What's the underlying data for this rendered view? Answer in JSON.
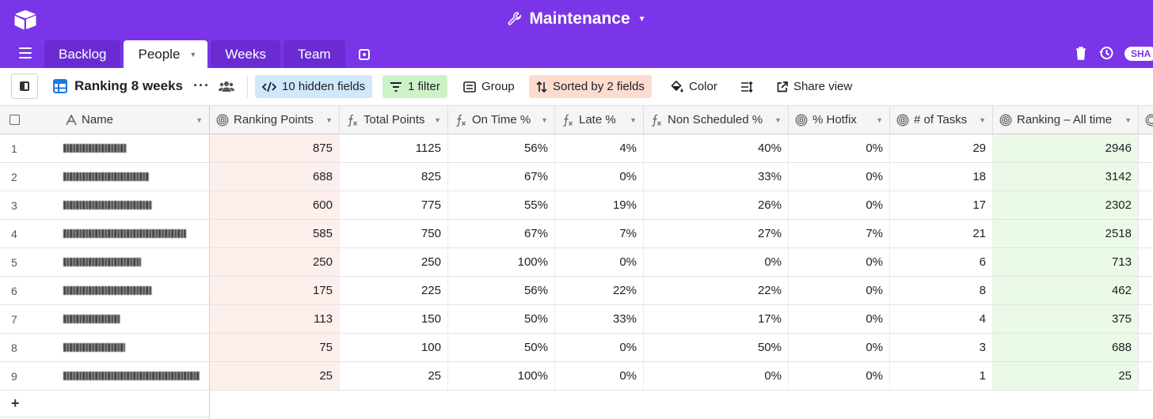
{
  "app": {
    "base_title": "Maintenance",
    "brand_color": "#7a35e8"
  },
  "tabs": [
    {
      "label": "Backlog"
    },
    {
      "label": "People",
      "active": true
    },
    {
      "label": "Weeks"
    },
    {
      "label": "Team"
    }
  ],
  "share_pill": "SHA",
  "toolbar": {
    "view_name": "Ranking 8 weeks",
    "hidden_fields": "10 hidden fields",
    "filter": "1 filter",
    "group": "Group",
    "sort": "Sorted by 2 fields",
    "color": "Color",
    "share_view": "Share view"
  },
  "columns": [
    {
      "label": "Name",
      "icon": "text-icon"
    },
    {
      "label": "Ranking Points",
      "icon": "rollup-icon"
    },
    {
      "label": "Total Points",
      "icon": "formula-icon"
    },
    {
      "label": "On Time %",
      "icon": "formula-icon"
    },
    {
      "label": "Late %",
      "icon": "formula-icon"
    },
    {
      "label": "Non Scheduled %",
      "icon": "formula-icon"
    },
    {
      "label": "% Hotfix",
      "icon": "rollup-icon"
    },
    {
      "label": "# of Tasks",
      "icon": "rollup-icon"
    },
    {
      "label": "Ranking – All time",
      "icon": "rollup-icon"
    }
  ],
  "rows": [
    {
      "num": "1",
      "ranking_points": "875",
      "total_points": "1125",
      "on_time": "56%",
      "late": "4%",
      "non_scheduled": "40%",
      "hotfix": "0%",
      "tasks": "29",
      "ranking_all_time": "2946"
    },
    {
      "num": "2",
      "ranking_points": "688",
      "total_points": "825",
      "on_time": "67%",
      "late": "0%",
      "non_scheduled": "33%",
      "hotfix": "0%",
      "tasks": "18",
      "ranking_all_time": "3142"
    },
    {
      "num": "3",
      "ranking_points": "600",
      "total_points": "775",
      "on_time": "55%",
      "late": "19%",
      "non_scheduled": "26%",
      "hotfix": "0%",
      "tasks": "17",
      "ranking_all_time": "2302"
    },
    {
      "num": "4",
      "ranking_points": "585",
      "total_points": "750",
      "on_time": "67%",
      "late": "7%",
      "non_scheduled": "27%",
      "hotfix": "7%",
      "tasks": "21",
      "ranking_all_time": "2518"
    },
    {
      "num": "5",
      "ranking_points": "250",
      "total_points": "250",
      "on_time": "100%",
      "late": "0%",
      "non_scheduled": "0%",
      "hotfix": "0%",
      "tasks": "6",
      "ranking_all_time": "713"
    },
    {
      "num": "6",
      "ranking_points": "175",
      "total_points": "225",
      "on_time": "56%",
      "late": "22%",
      "non_scheduled": "22%",
      "hotfix": "0%",
      "tasks": "8",
      "ranking_all_time": "462"
    },
    {
      "num": "7",
      "ranking_points": "113",
      "total_points": "150",
      "on_time": "50%",
      "late": "33%",
      "non_scheduled": "17%",
      "hotfix": "0%",
      "tasks": "4",
      "ranking_all_time": "375"
    },
    {
      "num": "8",
      "ranking_points": "75",
      "total_points": "100",
      "on_time": "50%",
      "late": "0%",
      "non_scheduled": "50%",
      "hotfix": "0%",
      "tasks": "3",
      "ranking_all_time": "688"
    },
    {
      "num": "9",
      "ranking_points": "25",
      "total_points": "25",
      "on_time": "100%",
      "late": "0%",
      "non_scheduled": "0%",
      "hotfix": "0%",
      "tasks": "1",
      "ranking_all_time": "25"
    }
  ],
  "add_row": "+"
}
